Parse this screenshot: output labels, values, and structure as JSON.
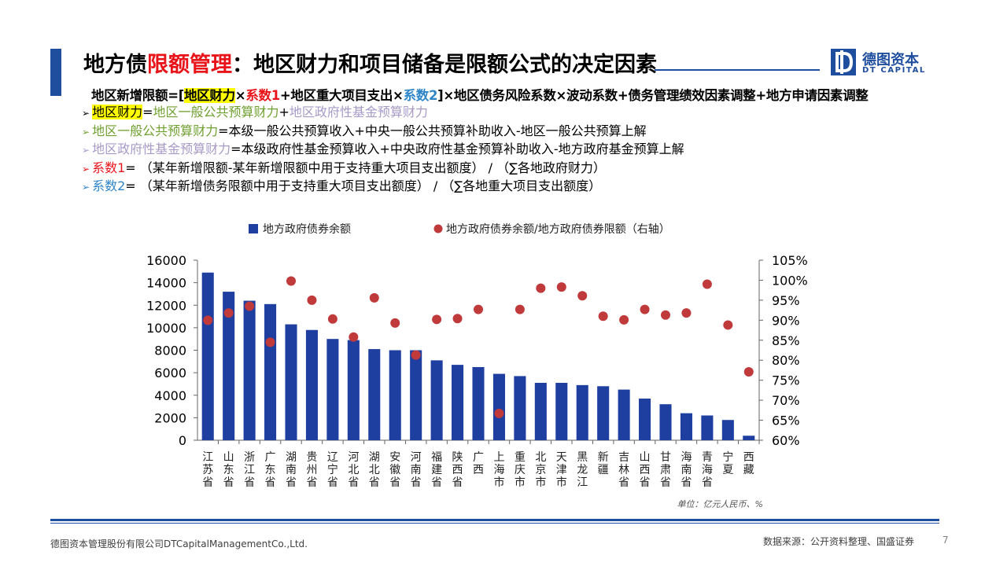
{
  "header": {
    "title_prefix": "地方债",
    "title_highlight": "限额管理",
    "title_suffix": "：地区财力和项目储备是限额公式的决定因素",
    "logo_cn": "德图资本",
    "logo_en": "DT CAPITAL",
    "logo_letter": "D"
  },
  "formula": {
    "p1": "地区新增限额=[",
    "p2": "地区财力",
    "p3": "×",
    "p4": "系数1",
    "p5": "+地区重大项目支出×",
    "p6": "系数2",
    "p7": "]×地区债务风险系数×波动系数+债务管理绩效因素调整+地方申请因素调整"
  },
  "bullets": {
    "arrow": "➢",
    "b1_a": "地区财力",
    "b1_b": "=",
    "b1_c": "地区一般公共预算财力",
    "b1_d": "+",
    "b1_e": "地区政府性基金预算财力",
    "b2_a": "地区一般公共预算财力",
    "b2_b": "=本级一般公共预算收入+中央一般公共预算补助收入-地区一般公共预算上解",
    "b3_a": "地区政府性基金预算财力",
    "b3_b": "=本级政府性基金预算收入+中央政府性基金预算补助收入-地方政府基金预算上解",
    "b4_a": "系数1",
    "b4_b": "= （某年新增限额-某年新增限额中用于支持重大项目支出额度） / （∑各地政府财力）",
    "b5_a": "系数2",
    "b5_b": "= （某年新增债务限额中用于支持重大项目支出额度） / （∑各地重大项目支出额度）"
  },
  "chart_data": {
    "type": "bar",
    "categories": [
      "江苏省",
      "山东省",
      "浙江省",
      "广东省",
      "湖南省",
      "贵州省",
      "辽宁省",
      "河北省",
      "湖北省",
      "安徽省",
      "河南省",
      "福建省",
      "陕西省",
      "广西",
      "上海市",
      "重庆市",
      "北京市",
      "天津市",
      "黑龙江",
      "新疆",
      "吉林省",
      "山西省",
      "甘肃省",
      "海南省",
      "青海省",
      "宁夏",
      "西藏"
    ],
    "series": [
      {
        "name": "地方政府债券余额",
        "type": "bar",
        "axis": "left",
        "color": "#1f3fa0",
        "values": [
          14900,
          13200,
          12400,
          12100,
          10300,
          9800,
          9000,
          8900,
          8100,
          8000,
          8000,
          7100,
          6700,
          6500,
          5900,
          5700,
          5100,
          5100,
          4900,
          4800,
          4500,
          3700,
          3200,
          2400,
          2200,
          1800,
          400
        ]
      },
      {
        "name": "地方政府债券余额/地方政府债券限额（右轴）",
        "type": "scatter",
        "axis": "right",
        "color": "#c0393b",
        "values": [
          90.0,
          91.8,
          93.5,
          84.5,
          99.8,
          95.0,
          90.3,
          85.8,
          95.6,
          89.3,
          81.3,
          90.2,
          90.4,
          92.7,
          66.7,
          92.7,
          98.0,
          98.3,
          96.1,
          91.0,
          90.1,
          92.7,
          91.3,
          91.8,
          99.0,
          88.8,
          77.1
        ]
      }
    ],
    "y_left": {
      "min": 0,
      "max": 16000,
      "step": 2000,
      "ticks": [
        "0",
        "2000",
        "4000",
        "6000",
        "8000",
        "10000",
        "12000",
        "14000",
        "16000"
      ]
    },
    "y_right": {
      "min": 60,
      "max": 105,
      "step": 5,
      "ticks": [
        "60%",
        "65%",
        "70%",
        "75%",
        "80%",
        "85%",
        "90%",
        "95%",
        "100%",
        "105%"
      ]
    },
    "unit_note": "单位：亿元人民币、%",
    "legend_position": "top",
    "grid": false
  },
  "footer": {
    "left": "德图资本管理股份有限公司DTCapitalManagementCo.,Ltd.",
    "source": "数据来源：公开资料整理、国盛证券",
    "page": "7"
  }
}
